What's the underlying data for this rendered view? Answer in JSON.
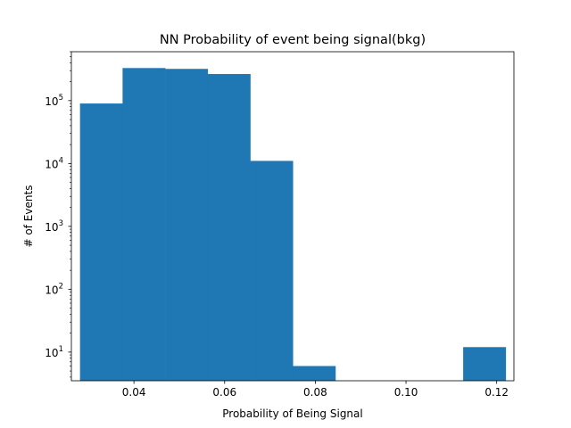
{
  "chart_data": {
    "type": "bar",
    "subtype": "histogram",
    "title": "NN Probability of event being signal(bkg)",
    "xlabel": "Probability of Being Signal",
    "ylabel": "# of Events",
    "yscale": "log",
    "xlim": [
      0.0262,
      0.1238
    ],
    "ylim": [
      3.5,
      600000
    ],
    "grid": false,
    "color": "#1f77b4",
    "bin_edges": [
      0.0281,
      0.03749,
      0.04688,
      0.05627,
      0.06566,
      0.07505,
      0.08444,
      0.09383,
      0.10322,
      0.11261,
      0.122
    ],
    "values": [
      90000,
      330000,
      320000,
      265000,
      11000,
      6,
      0,
      0,
      0,
      12
    ],
    "x_ticks": [
      {
        "value": 0.04,
        "label": "0.04"
      },
      {
        "value": 0.06,
        "label": "0.06"
      },
      {
        "value": 0.08,
        "label": "0.08"
      },
      {
        "value": 0.1,
        "label": "0.10"
      },
      {
        "value": 0.12,
        "label": "0.12"
      }
    ],
    "y_ticks": [
      {
        "value": 10,
        "base": "10",
        "exp": "1"
      },
      {
        "value": 100,
        "base": "10",
        "exp": "2"
      },
      {
        "value": 1000,
        "base": "10",
        "exp": "3"
      },
      {
        "value": 10000,
        "base": "10",
        "exp": "4"
      },
      {
        "value": 100000,
        "base": "10",
        "exp": "5"
      }
    ]
  }
}
